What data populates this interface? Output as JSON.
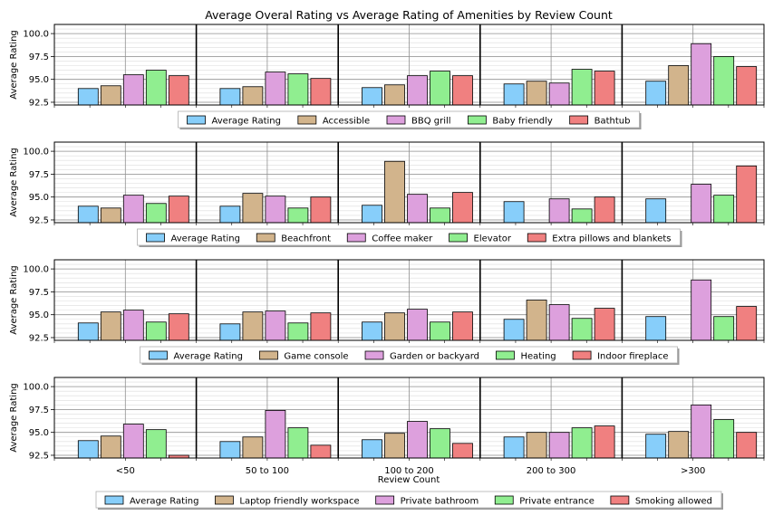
{
  "chart_data": {
    "type": "bar",
    "title": "Average Overal Rating vs Average Rating of Amenities by Review Count",
    "xlabel": "Review Count",
    "ylabel": "Average Rating",
    "categories": [
      "<50",
      "50 to 100",
      "100 to 200",
      "200 to 300",
      ">300"
    ],
    "ylim": [
      92.2,
      101.0
    ],
    "yticks": [
      "92.5",
      "95.0",
      "97.5",
      "100.0"
    ],
    "grid": true,
    "legend_position": "below each panel",
    "colors": [
      "#87cefa",
      "#d2b48c",
      "#dda0dd",
      "#90ee90",
      "#f08080"
    ],
    "panels": [
      {
        "series": [
          {
            "name": "Average Rating",
            "values": [
              94.0,
              94.0,
              94.1,
              94.5,
              94.8
            ]
          },
          {
            "name": "Accessible",
            "values": [
              94.3,
              94.2,
              94.4,
              94.8,
              96.5
            ]
          },
          {
            "name": "BBQ grill",
            "values": [
              95.5,
              95.8,
              95.4,
              94.6,
              98.9
            ]
          },
          {
            "name": "Baby friendly",
            "values": [
              96.0,
              95.6,
              95.9,
              96.1,
              97.5
            ]
          },
          {
            "name": "Bathtub",
            "values": [
              95.4,
              95.1,
              95.4,
              95.9,
              96.4
            ]
          }
        ]
      },
      {
        "series": [
          {
            "name": "Average Rating",
            "values": [
              94.0,
              94.0,
              94.1,
              94.5,
              94.8
            ]
          },
          {
            "name": "Beachfront",
            "values": [
              93.8,
              95.4,
              98.9,
              null,
              null
            ]
          },
          {
            "name": "Coffee maker",
            "values": [
              95.2,
              95.1,
              95.3,
              94.8,
              96.4
            ]
          },
          {
            "name": "Elevator",
            "values": [
              94.3,
              93.8,
              93.8,
              93.7,
              95.2
            ]
          },
          {
            "name": "Extra pillows and blankets",
            "values": [
              95.1,
              95.0,
              95.5,
              95.0,
              98.4
            ]
          }
        ]
      },
      {
        "series": [
          {
            "name": "Average Rating",
            "values": [
              94.1,
              94.0,
              94.2,
              94.5,
              94.8
            ]
          },
          {
            "name": "Game console",
            "values": [
              95.3,
              95.3,
              95.2,
              96.6,
              null
            ]
          },
          {
            "name": "Garden or backyard",
            "values": [
              95.5,
              95.4,
              95.6,
              96.1,
              98.8
            ]
          },
          {
            "name": "Heating",
            "values": [
              94.2,
              94.1,
              94.2,
              94.6,
              94.8
            ]
          },
          {
            "name": "Indoor fireplace",
            "values": [
              95.1,
              95.2,
              95.3,
              95.7,
              95.9
            ]
          }
        ]
      },
      {
        "series": [
          {
            "name": "Average Rating",
            "values": [
              94.1,
              94.0,
              94.2,
              94.5,
              94.8
            ]
          },
          {
            "name": "Laptop friendly workspace",
            "values": [
              94.6,
              94.5,
              94.9,
              95.0,
              95.1
            ]
          },
          {
            "name": "Private bathroom",
            "values": [
              95.9,
              97.4,
              96.2,
              95.0,
              98.0
            ]
          },
          {
            "name": "Private entrance",
            "values": [
              95.3,
              95.5,
              95.4,
              95.5,
              96.4
            ]
          },
          {
            "name": "Smoking allowed",
            "values": [
              92.5,
              93.6,
              93.8,
              95.7,
              95.0
            ]
          }
        ]
      }
    ]
  }
}
